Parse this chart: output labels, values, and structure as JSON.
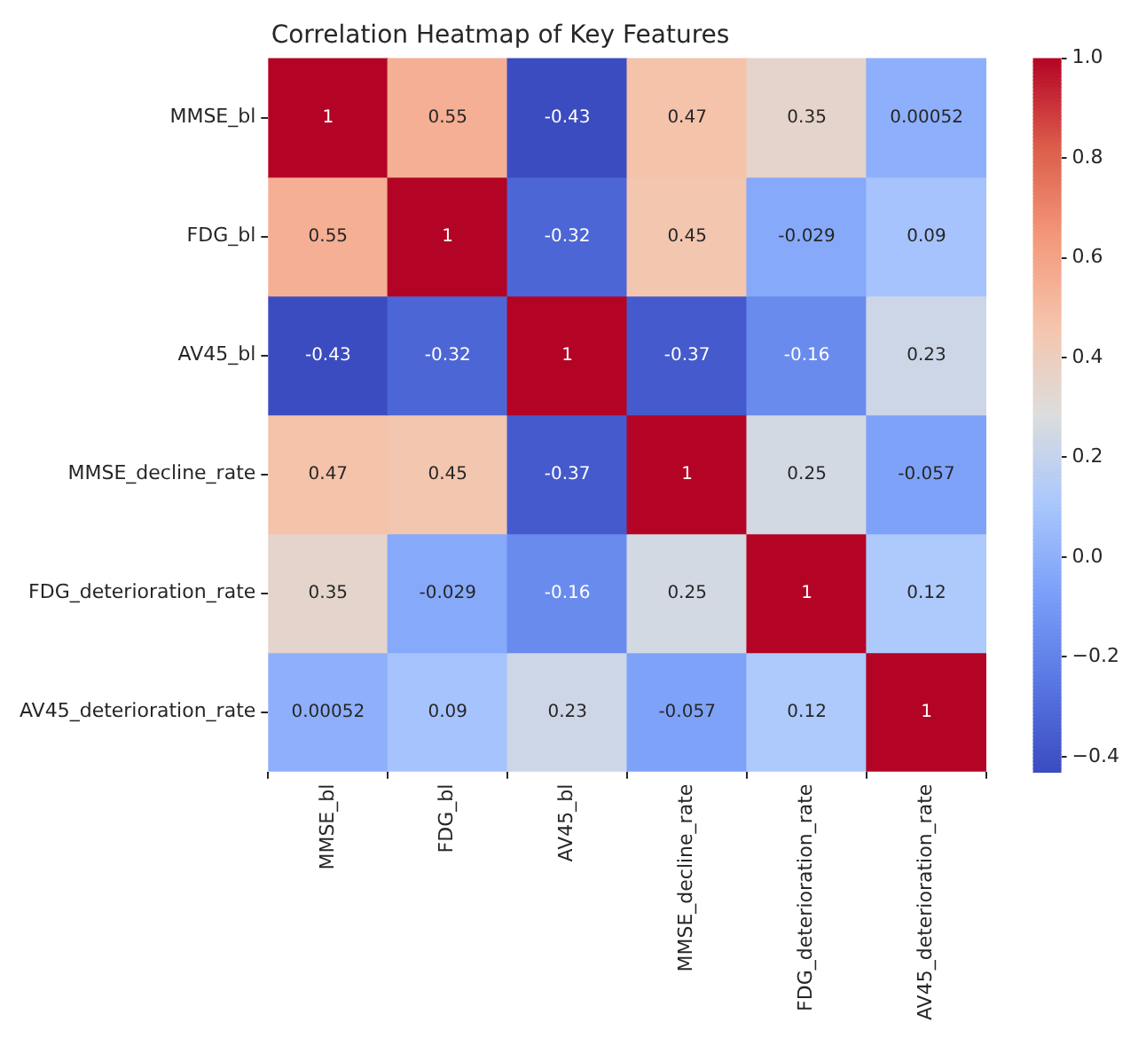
{
  "chart_data": {
    "type": "heatmap",
    "title": "Correlation Heatmap of Key Features",
    "categories": [
      "MMSE_bl",
      "FDG_bl",
      "AV45_bl",
      "MMSE_decline_rate",
      "FDG_deterioration_rate",
      "AV45_deterioration_rate"
    ],
    "y_categories": [
      "MMSE_bl",
      "FDG_bl",
      "AV45_bl",
      "MMSE_decline_rate",
      "FDG_deterioration_rate",
      "AV45_deterioration_rate"
    ],
    "cells": [
      [
        1,
        0.55,
        -0.43,
        0.47,
        0.35,
        0.00052
      ],
      [
        0.55,
        1,
        -0.32,
        0.45,
        -0.029,
        0.09
      ],
      [
        -0.43,
        -0.32,
        1,
        -0.37,
        -0.16,
        0.23
      ],
      [
        0.47,
        0.45,
        -0.37,
        1,
        0.25,
        -0.057
      ],
      [
        0.35,
        -0.029,
        -0.16,
        0.25,
        1,
        0.12
      ],
      [
        0.00052,
        0.09,
        0.23,
        -0.057,
        0.12,
        1
      ]
    ],
    "data_labels": true,
    "clim": [
      -0.43,
      1
    ],
    "cticks": [
      {
        "value": -0.4,
        "label": "−0.4"
      },
      {
        "value": -0.2,
        "label": "−0.2"
      },
      {
        "value": 0,
        "label": "0.0"
      },
      {
        "value": 0.2,
        "label": "0.2"
      },
      {
        "value": 0.4,
        "label": "0.4"
      },
      {
        "value": 0.6,
        "label": "0.6"
      },
      {
        "value": 0.8,
        "label": "0.8"
      },
      {
        "value": 1,
        "label": "1.0"
      }
    ]
  }
}
